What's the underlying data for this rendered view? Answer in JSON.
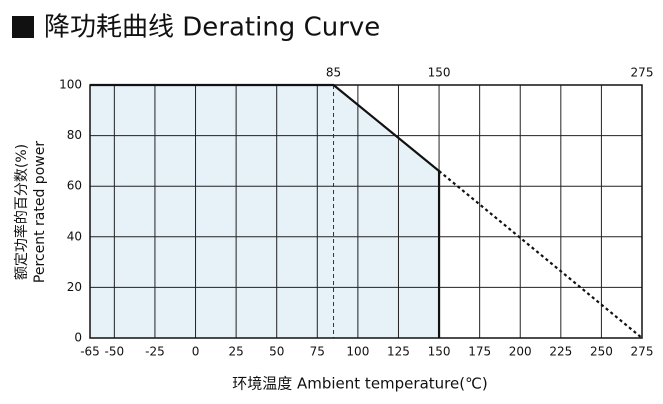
{
  "chart_data": {
    "type": "line",
    "title": "降功耗曲线 Derating Curve",
    "x_label": "环境温度 Ambient temperature(℃)",
    "y_label": [
      "额定功率的百分数(%)",
      "Percent rated power"
    ],
    "series": [
      {
        "color": "#111111",
        "style": "solid",
        "fill": "#e6f1f8",
        "x": [
          -65,
          85,
          150,
          150
        ],
        "values": [
          100,
          100,
          66,
          0
        ]
      },
      {
        "color": "#111111",
        "style": "dotted",
        "x": [
          150,
          275
        ],
        "values": [
          66,
          0
        ]
      }
    ],
    "xlim": [
      -65,
      275
    ],
    "xticks": [
      -65,
      -50,
      -25,
      0,
      25,
      50,
      75,
      100,
      125,
      150,
      175,
      200,
      225,
      250,
      275
    ],
    "top_ticks": [
      85,
      150,
      275
    ],
    "ylim": [
      0,
      100
    ],
    "yticks": [
      0,
      20,
      40,
      60,
      80,
      100
    ],
    "grid": true
  }
}
